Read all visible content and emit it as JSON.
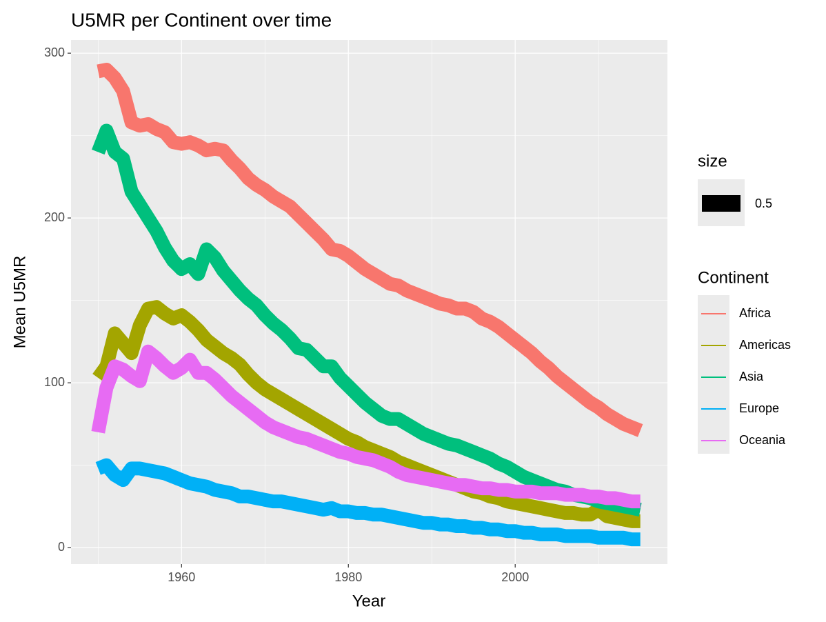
{
  "chart_data": {
    "type": "line",
    "title": "U5MR per Continent over time",
    "x_label": "Year",
    "y_label": "Mean U5MR",
    "x": [
      1950,
      1951,
      1952,
      1953,
      1954,
      1955,
      1956,
      1957,
      1958,
      1959,
      1960,
      1961,
      1962,
      1963,
      1964,
      1965,
      1966,
      1967,
      1968,
      1969,
      1970,
      1971,
      1972,
      1973,
      1974,
      1975,
      1976,
      1977,
      1978,
      1979,
      1980,
      1981,
      1982,
      1983,
      1984,
      1985,
      1986,
      1987,
      1988,
      1989,
      1990,
      1991,
      1992,
      1993,
      1994,
      1995,
      1996,
      1997,
      1998,
      1999,
      2000,
      2001,
      2002,
      2003,
      2004,
      2005,
      2006,
      2007,
      2008,
      2009,
      2010,
      2011,
      2012,
      2013,
      2014,
      2015
    ],
    "xlim": [
      1946.75,
      2018.25
    ],
    "xticks": [
      1960,
      1980,
      2000
    ],
    "xminor_ticks": [
      1950,
      1970,
      1990,
      2010
    ],
    "ylim": [
      -10,
      308
    ],
    "yticks": [
      0,
      100,
      200,
      300
    ],
    "yminor_ticks": [
      50,
      150,
      250
    ],
    "grid": true,
    "legend_position": "right",
    "size_legend": {
      "title": "size",
      "label": "0.5"
    },
    "legend_title": "Continent",
    "series": [
      {
        "name": "Africa",
        "color": "#F8766D",
        "values": [
          289,
          290,
          285,
          277,
          258,
          256,
          257,
          254,
          252,
          246,
          245,
          246,
          244,
          241,
          242,
          241,
          235,
          230,
          224,
          220,
          217,
          213,
          210,
          207,
          202,
          197,
          192,
          187,
          181,
          180,
          177,
          173,
          169,
          166,
          163,
          160,
          159,
          156,
          154,
          152,
          150,
          148,
          147,
          145,
          145,
          143,
          139,
          137,
          134,
          130,
          126,
          122,
          118,
          113,
          109,
          104,
          100,
          96,
          92,
          88,
          85,
          81,
          78,
          75,
          73,
          71
        ]
      },
      {
        "name": "Americas",
        "color": "#A3A500",
        "values": [
          103,
          110,
          130,
          124,
          118,
          135,
          145,
          146,
          142,
          139,
          141,
          137,
          132,
          126,
          122,
          118,
          115,
          111,
          105,
          100,
          96,
          93,
          90,
          87,
          84,
          81,
          78,
          75,
          72,
          69,
          66,
          64,
          61,
          59,
          57,
          55,
          52,
          50,
          48,
          46,
          44,
          42,
          40,
          38,
          36,
          34,
          33,
          31,
          30,
          28,
          27,
          26,
          25,
          24,
          23,
          22,
          21,
          21,
          20,
          20,
          23,
          19,
          18,
          17,
          16,
          16
        ]
      },
      {
        "name": "Asia",
        "color": "#00BF7D",
        "values": [
          240,
          253,
          240,
          236,
          216,
          208,
          200,
          192,
          182,
          174,
          169,
          172,
          166,
          181,
          176,
          168,
          162,
          156,
          151,
          147,
          141,
          136,
          132,
          127,
          121,
          120,
          115,
          110,
          110,
          103,
          98,
          93,
          88,
          84,
          80,
          78,
          78,
          75,
          72,
          69,
          67,
          65,
          63,
          62,
          60,
          58,
          56,
          54,
          51,
          49,
          46,
          43,
          41,
          39,
          37,
          35,
          34,
          32,
          31,
          30,
          28,
          27,
          26,
          25,
          24,
          23
        ]
      },
      {
        "name": "Europe",
        "color": "#00B0F6",
        "values": [
          48,
          50,
          44,
          41,
          48,
          48,
          47,
          46,
          45,
          43,
          41,
          39,
          38,
          37,
          35,
          34,
          33,
          31,
          31,
          30,
          29,
          28,
          28,
          27,
          26,
          25,
          24,
          23,
          24,
          22,
          22,
          21,
          21,
          20,
          20,
          19,
          18,
          17,
          16,
          15,
          15,
          14,
          14,
          13,
          13,
          12,
          12,
          11,
          11,
          10,
          10,
          9,
          9,
          8,
          8,
          8,
          7,
          7,
          7,
          7,
          6,
          6,
          6,
          6,
          5,
          5
        ]
      },
      {
        "name": "Oceania",
        "color": "#E76BF3",
        "values": [
          70,
          97,
          110,
          108,
          104,
          101,
          119,
          115,
          110,
          106,
          109,
          114,
          106,
          106,
          102,
          97,
          92,
          88,
          84,
          80,
          76,
          73,
          71,
          69,
          67,
          66,
          64,
          62,
          60,
          58,
          57,
          55,
          54,
          53,
          51,
          49,
          46,
          44,
          43,
          42,
          41,
          40,
          39,
          38,
          38,
          37,
          36,
          36,
          35,
          35,
          34,
          34,
          34,
          33,
          33,
          33,
          32,
          32,
          32,
          31,
          31,
          30,
          30,
          29,
          28,
          28
        ]
      }
    ]
  }
}
